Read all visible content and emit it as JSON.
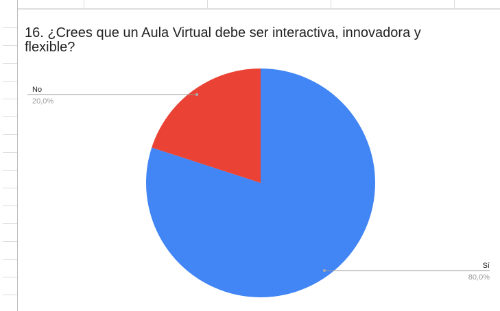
{
  "chart_data": {
    "type": "pie",
    "title": "16. ¿Crees que un Aula Virtual debe ser interactiva, innovadora y flexible?",
    "categories": [
      "Sí",
      "No"
    ],
    "values": [
      80,
      20
    ],
    "value_labels": [
      "80,0%",
      "20,0%"
    ],
    "colors": [
      "#4285f4",
      "#ea4335"
    ]
  }
}
